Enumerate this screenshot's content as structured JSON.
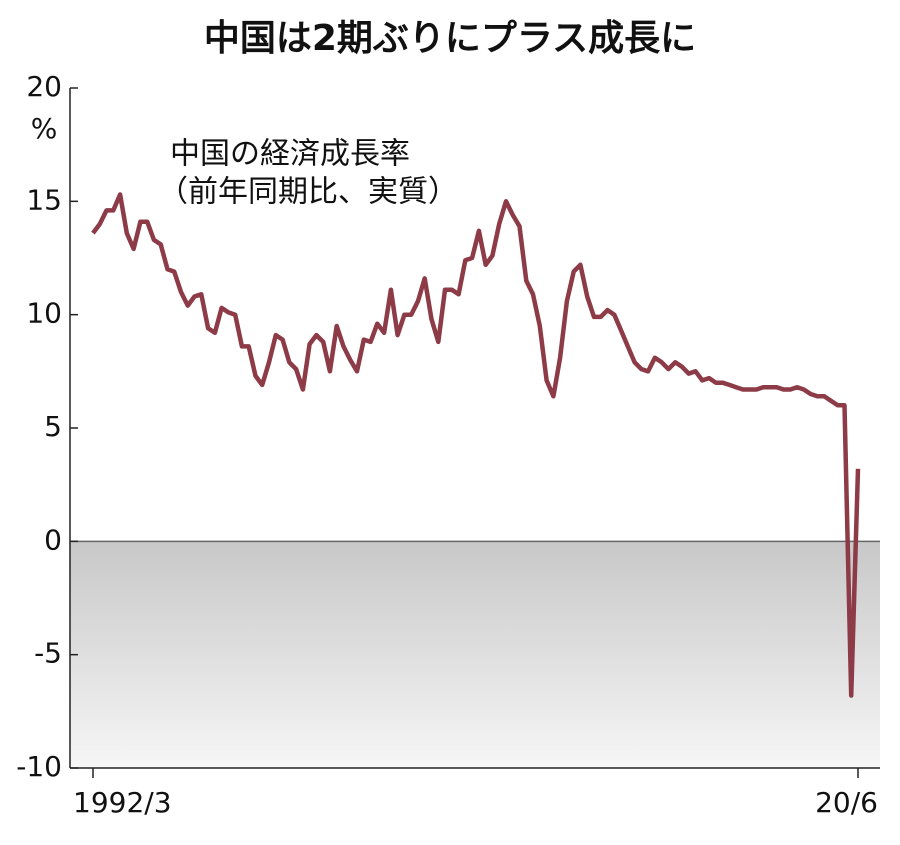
{
  "chart_data": {
    "type": "line",
    "title": "中国は2期ぶりにプラス成長に",
    "y_label": "%",
    "annotations": [
      "中国の経済成長率",
      "（前年同期比、実質）"
    ],
    "categories": [
      "1992/3",
      null,
      null,
      null,
      null,
      null,
      null,
      null,
      null,
      null,
      null,
      null,
      null,
      null,
      null,
      null,
      null,
      null,
      null,
      null,
      null,
      null,
      null,
      null,
      null,
      null,
      null,
      null,
      null,
      null,
      null,
      null,
      null,
      null,
      null,
      null,
      null,
      null,
      null,
      null,
      null,
      null,
      null,
      null,
      null,
      null,
      null,
      null,
      null,
      null,
      null,
      null,
      null,
      null,
      null,
      null,
      null,
      null,
      null,
      null,
      null,
      null,
      null,
      null,
      null,
      null,
      null,
      null,
      null,
      null,
      null,
      null,
      null,
      null,
      null,
      null,
      null,
      null,
      null,
      null,
      null,
      null,
      null,
      null,
      null,
      null,
      null,
      null,
      null,
      null,
      null,
      null,
      null,
      null,
      null,
      null,
      null,
      null,
      null,
      null,
      null,
      null,
      null,
      null,
      null,
      null,
      null,
      null,
      null,
      null,
      null,
      null,
      null,
      "20/6"
    ],
    "values": [
      13.6,
      14.0,
      14.6,
      14.6,
      15.3,
      13.6,
      12.9,
      14.1,
      14.1,
      13.3,
      13.1,
      12.0,
      11.9,
      11.0,
      10.4,
      10.8,
      10.9,
      9.4,
      9.2,
      10.3,
      10.1,
      10.0,
      8.6,
      8.6,
      7.3,
      6.9,
      7.9,
      9.1,
      8.9,
      7.9,
      7.6,
      6.7,
      8.7,
      9.1,
      8.8,
      7.5,
      9.5,
      8.6,
      8.0,
      7.5,
      8.9,
      8.8,
      9.6,
      9.2,
      11.1,
      9.1,
      10.0,
      10.0,
      10.6,
      11.6,
      9.8,
      8.8,
      11.1,
      11.1,
      10.9,
      12.4,
      12.5,
      13.7,
      12.2,
      12.6,
      14.0,
      15.0,
      14.4,
      13.9,
      11.5,
      10.9,
      9.5,
      7.1,
      6.4,
      8.1,
      10.6,
      11.9,
      12.2,
      10.8,
      9.9,
      9.9,
      10.2,
      10.0,
      9.3,
      8.6,
      7.9,
      7.6,
      7.5,
      8.1,
      7.9,
      7.6,
      7.9,
      7.7,
      7.4,
      7.5,
      7.1,
      7.2,
      7.0,
      7.0,
      6.9,
      6.8,
      6.7,
      6.7,
      6.7,
      6.8,
      6.8,
      6.8,
      6.7,
      6.7,
      6.8,
      6.7,
      6.5,
      6.4,
      6.4,
      6.2,
      6.0,
      6.0,
      -6.8,
      3.2
    ],
    "color": "#8c3b47",
    "ylim": [
      -10,
      20
    ],
    "yticks": [
      -10,
      -5,
      0,
      5,
      10,
      15,
      20
    ]
  }
}
